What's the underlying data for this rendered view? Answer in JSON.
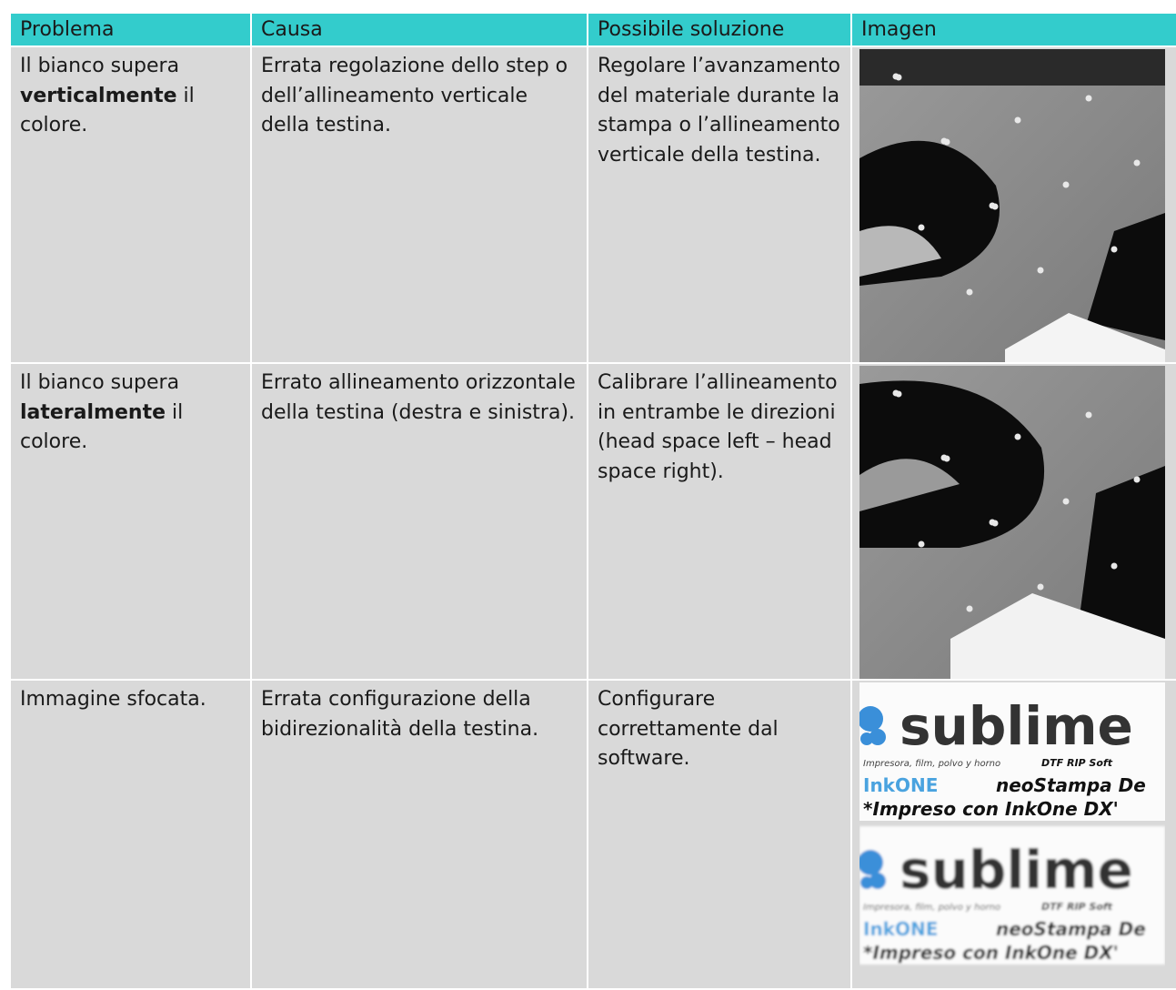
{
  "header": {
    "columns": [
      "Problema",
      "Causa",
      "Possibile soluzione",
      "Imagen"
    ]
  },
  "table": {
    "rows": [
      {
        "problem": {
          "before": "Il bianco supera ",
          "bold": "verticalmente",
          "after": " il colore."
        },
        "cause": "Errata regolazione dello step o dell’allineamento verticale della testina.",
        "solution": "Regolare l’avanzamento del materiale durante la stampa o l’allineamento verticale della testina."
      },
      {
        "problem": {
          "before": "Il bianco supera ",
          "bold": "lateralmente",
          "after": " il colore."
        },
        "cause": "Errato allineamento orizzontale della testina (destra e sinistra).",
        "solution": "Calibrare l’allineamento in entrambe le direzioni (head space left – head space right)."
      },
      {
        "problem": {
          "before": "Immagine sfocata."
        },
        "cause": "Errata configurazione della bidirezionalità della testina.",
        "solution": "Configurare correttamente dal software.",
        "image_text": [
          "sublime",
          "Impresora, film, polvo y horno",
          "DTF RIP Soft",
          "InkONE",
          "neoStampa De",
          "*Impreso con InkOne DX'"
        ]
      }
    ]
  }
}
